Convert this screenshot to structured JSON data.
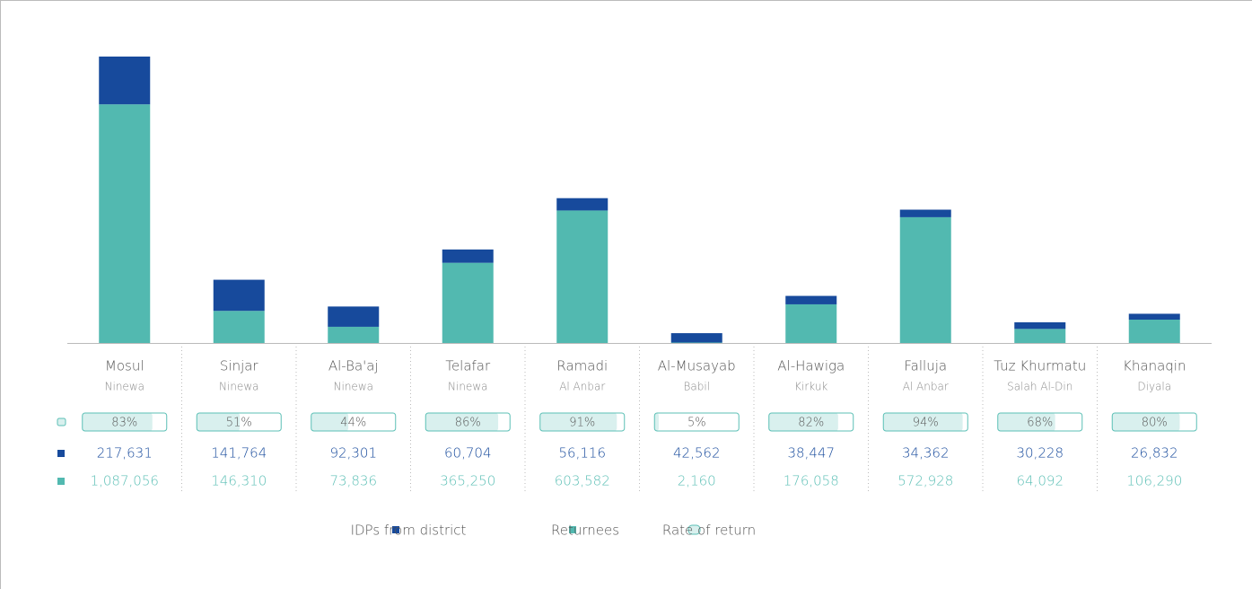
{
  "chart_data": {
    "type": "stacked_bar",
    "categories": [
      "Mosul",
      "Sinjar",
      "Al-Ba'aj",
      "Telafar",
      "Ramadi",
      "Al-Musayab",
      "Al-Hawiga",
      "Falluja",
      "Tuz Khurmatu",
      "Khanaqin"
    ],
    "subcategories": [
      "Ninewa",
      "Ninewa",
      "Ninewa",
      "Ninewa",
      "Al Anbar",
      "Babil",
      "Kirkuk",
      "Al Anbar",
      "Salah Al-Din",
      "Diyala"
    ],
    "series": [
      {
        "name": "Returnees",
        "color": "#52b9b0",
        "text_color": "#5bbfb5",
        "values": [
          1087056,
          146310,
          73836,
          365250,
          603582,
          2160,
          176058,
          572928,
          64092,
          106290
        ],
        "value_labels": [
          "1,087,056",
          "146,310",
          "73,836",
          "365,250",
          "603,582",
          "2,160",
          "176,058",
          "572,928",
          "64,092",
          "106,290"
        ]
      },
      {
        "name": "IDPs from district",
        "color": "#174a9c",
        "text_color": "#174a9c",
        "values": [
          217631,
          141764,
          92301,
          60704,
          56116,
          42562,
          38447,
          34362,
          30228,
          26832
        ],
        "value_labels": [
          "217,631",
          "141,764",
          "92,301",
          "60,704",
          "56,116",
          "42,562",
          "38,447",
          "34,362",
          "30,228",
          "26,832"
        ]
      }
    ],
    "rate_of_return": {
      "name": "Rate of return",
      "fill": "#d9f0ee",
      "border": "#5bbfb5",
      "values": [
        83,
        51,
        44,
        86,
        91,
        5,
        82,
        94,
        68,
        80
      ],
      "value_labels": [
        "83%",
        "51%",
        "44%",
        "86%",
        "91%",
        "5%",
        "82%",
        "94%",
        "68%",
        "80%"
      ]
    }
  }
}
